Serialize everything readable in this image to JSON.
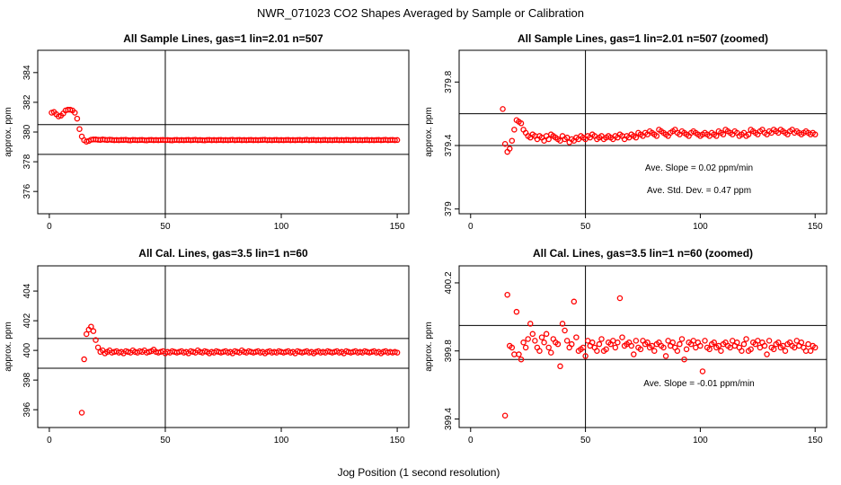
{
  "figure": {
    "title": "NWR_071023  CO2 Shapes Averaged by Sample or Calibration",
    "xlabel": "Jog Position (1 second resolution)"
  },
  "colors": {
    "points": "#ff0000",
    "axes": "#000000",
    "background": "#ffffff"
  },
  "chart_data": [
    {
      "type": "scatter",
      "title": "All Sample Lines, gas=1 lin=2.01 n=507",
      "xlabel": "",
      "ylabel": "approx. ppm",
      "xlim": [
        -5,
        155
      ],
      "ylim": [
        374.5,
        385.5
      ],
      "xticks": [
        0,
        50,
        100,
        150
      ],
      "yticks": [
        376,
        378,
        380,
        382,
        384
      ],
      "vline": 50,
      "hlines": [
        378.5,
        380.5
      ],
      "annotations": [],
      "x": [
        1,
        2,
        3,
        4,
        5,
        6,
        7,
        8,
        9,
        10,
        11,
        12,
        13,
        14,
        15,
        16,
        17,
        18,
        19,
        20,
        21,
        22,
        23,
        24,
        25,
        26,
        27,
        28,
        29,
        30,
        31,
        32,
        33,
        34,
        35,
        36,
        37,
        38,
        39,
        40,
        41,
        42,
        43,
        44,
        45,
        46,
        47,
        48,
        49,
        50,
        51,
        52,
        53,
        54,
        55,
        56,
        57,
        58,
        59,
        60,
        61,
        62,
        63,
        64,
        65,
        66,
        67,
        68,
        69,
        70,
        71,
        72,
        73,
        74,
        75,
        76,
        77,
        78,
        79,
        80,
        81,
        82,
        83,
        84,
        85,
        86,
        87,
        88,
        89,
        90,
        91,
        92,
        93,
        94,
        95,
        96,
        97,
        98,
        99,
        100,
        101,
        102,
        103,
        104,
        105,
        106,
        107,
        108,
        109,
        110,
        111,
        112,
        113,
        114,
        115,
        116,
        117,
        118,
        119,
        120,
        121,
        122,
        123,
        124,
        125,
        126,
        127,
        128,
        129,
        130,
        131,
        132,
        133,
        134,
        135,
        136,
        137,
        138,
        139,
        140,
        141,
        142,
        143,
        144,
        145,
        146,
        147,
        148,
        149,
        150
      ],
      "y": [
        381.3,
        381.35,
        381.2,
        381.05,
        381.1,
        381.25,
        381.45,
        381.5,
        381.5,
        381.45,
        381.3,
        380.9,
        380.2,
        379.7,
        379.45,
        379.35,
        379.4,
        379.48,
        379.5,
        379.5,
        379.48,
        379.47,
        379.5,
        379.48,
        379.46,
        379.49,
        379.47,
        379.45,
        379.46,
        379.45,
        379.47,
        379.46,
        379.48,
        379.45,
        379.44,
        379.47,
        379.46,
        379.45,
        379.46,
        379.47,
        379.45,
        379.44,
        379.46,
        379.47,
        379.45,
        379.46,
        379.45,
        379.46,
        379.47,
        379.45,
        379.46,
        379.45,
        379.44,
        379.46,
        379.47,
        379.45,
        379.46,
        379.45,
        379.46,
        379.47,
        379.45,
        379.46,
        379.48,
        379.45,
        379.46,
        379.45,
        379.44,
        379.46,
        379.47,
        379.45,
        379.46,
        379.45,
        379.46,
        379.47,
        379.45,
        379.46,
        379.45,
        379.46,
        379.48,
        379.45,
        379.46,
        379.47,
        379.45,
        379.46,
        379.45,
        379.46,
        379.47,
        379.45,
        379.46,
        379.45,
        379.46,
        379.47,
        379.48,
        379.45,
        379.46,
        379.45,
        379.46,
        379.47,
        379.45,
        379.46,
        379.45,
        379.46,
        379.47,
        379.45,
        379.46,
        379.45,
        379.46,
        379.47,
        379.45,
        379.46,
        379.48,
        379.45,
        379.46,
        379.47,
        379.45,
        379.46,
        379.45,
        379.46,
        379.47,
        379.45,
        379.46,
        379.45,
        379.46,
        379.47,
        379.45,
        379.46,
        379.45,
        379.47,
        379.46,
        379.45,
        379.46,
        379.47,
        379.45,
        379.46,
        379.45,
        379.46,
        379.47,
        379.45,
        379.46,
        379.45,
        379.46,
        379.47,
        379.45,
        379.46,
        379.48,
        379.45,
        379.46,
        379.47,
        379.45,
        379.46
      ]
    },
    {
      "type": "scatter",
      "title": "All Sample Lines, gas=1 lin=2.01 n=507 (zoomed)",
      "xlabel": "",
      "ylabel": "approx. ppm",
      "xlim": [
        -5,
        155
      ],
      "ylim": [
        378.97,
        380.0
      ],
      "xticks": [
        0,
        50,
        100,
        150
      ],
      "yticks": [
        379.0,
        379.4,
        379.8
      ],
      "vline": 50,
      "hlines": [
        379.4,
        379.6
      ],
      "annotations": [
        "Ave. Slope =  0.02  ppm/min",
        "Ave. Std. Dev. =  0.47  ppm"
      ],
      "x": [
        14,
        15,
        16,
        17,
        18,
        19,
        20,
        21,
        22,
        23,
        24,
        25,
        26,
        27,
        28,
        29,
        30,
        31,
        32,
        33,
        34,
        35,
        36,
        37,
        38,
        39,
        40,
        41,
        42,
        43,
        44,
        45,
        46,
        47,
        48,
        49,
        50,
        51,
        52,
        53,
        54,
        55,
        56,
        57,
        58,
        59,
        60,
        61,
        62,
        63,
        64,
        65,
        66,
        67,
        68,
        69,
        70,
        71,
        72,
        73,
        74,
        75,
        76,
        77,
        78,
        79,
        80,
        81,
        82,
        83,
        84,
        85,
        86,
        87,
        88,
        89,
        90,
        91,
        92,
        93,
        94,
        95,
        96,
        97,
        98,
        99,
        100,
        101,
        102,
        103,
        104,
        105,
        106,
        107,
        108,
        109,
        110,
        111,
        112,
        113,
        114,
        115,
        116,
        117,
        118,
        119,
        120,
        121,
        122,
        123,
        124,
        125,
        126,
        127,
        128,
        129,
        130,
        131,
        132,
        133,
        134,
        135,
        136,
        137,
        138,
        139,
        140,
        141,
        142,
        143,
        144,
        145,
        146,
        147,
        148,
        149,
        150
      ],
      "y": [
        379.63,
        379.41,
        379.36,
        379.38,
        379.43,
        379.5,
        379.56,
        379.55,
        379.54,
        379.5,
        379.48,
        379.46,
        379.45,
        379.47,
        379.46,
        379.44,
        379.46,
        379.45,
        379.43,
        379.46,
        379.44,
        379.47,
        379.46,
        379.45,
        379.44,
        379.43,
        379.46,
        379.44,
        379.45,
        379.42,
        379.44,
        379.43,
        379.45,
        379.44,
        379.46,
        379.45,
        379.44,
        379.46,
        379.45,
        379.47,
        379.46,
        379.44,
        379.45,
        379.46,
        379.44,
        379.45,
        379.46,
        379.45,
        379.44,
        379.46,
        379.45,
        379.47,
        379.46,
        379.44,
        379.46,
        379.45,
        379.47,
        379.46,
        379.45,
        379.48,
        379.47,
        379.46,
        379.48,
        379.47,
        379.49,
        379.48,
        379.47,
        379.46,
        379.5,
        379.49,
        379.48,
        379.47,
        379.46,
        379.48,
        379.49,
        379.5,
        379.48,
        379.47,
        379.49,
        379.48,
        379.47,
        379.46,
        379.48,
        379.49,
        379.48,
        379.47,
        379.46,
        379.47,
        379.48,
        379.47,
        379.46,
        379.48,
        379.47,
        379.46,
        379.49,
        379.48,
        379.47,
        379.5,
        379.49,
        379.48,
        379.47,
        379.49,
        379.48,
        379.46,
        379.47,
        379.48,
        379.46,
        379.47,
        379.5,
        379.49,
        379.48,
        379.47,
        379.49,
        379.5,
        379.48,
        379.47,
        379.49,
        379.48,
        379.5,
        379.49,
        379.48,
        379.5,
        379.49,
        379.48,
        379.47,
        379.49,
        379.5,
        379.48,
        379.49,
        379.48,
        379.47,
        379.48,
        379.49,
        379.48,
        379.47,
        379.48,
        379.47
      ]
    },
    {
      "type": "scatter",
      "title": "All Cal. Lines, gas=3.5 lin=1 n=60",
      "xlabel": "",
      "ylabel": "approx. ppm",
      "xlim": [
        -5,
        155
      ],
      "ylim": [
        394.8,
        405.7
      ],
      "xticks": [
        0,
        50,
        100,
        150
      ],
      "yticks": [
        396,
        398,
        400,
        402,
        404
      ],
      "vline": 50,
      "hlines": [
        398.8,
        400.8
      ],
      "annotations": [],
      "x": [
        14,
        15,
        16,
        17,
        18,
        19,
        20,
        21,
        22,
        23,
        24,
        25,
        26,
        27,
        28,
        29,
        30,
        31,
        32,
        33,
        34,
        35,
        36,
        37,
        38,
        39,
        40,
        41,
        42,
        43,
        44,
        45,
        46,
        47,
        48,
        49,
        50,
        51,
        52,
        53,
        54,
        55,
        56,
        57,
        58,
        59,
        60,
        61,
        62,
        63,
        64,
        65,
        66,
        67,
        68,
        69,
        70,
        71,
        72,
        73,
        74,
        75,
        76,
        77,
        78,
        79,
        80,
        81,
        82,
        83,
        84,
        85,
        86,
        87,
        88,
        89,
        90,
        91,
        92,
        93,
        94,
        95,
        96,
        97,
        98,
        99,
        100,
        101,
        102,
        103,
        104,
        105,
        106,
        107,
        108,
        109,
        110,
        111,
        112,
        113,
        114,
        115,
        116,
        117,
        118,
        119,
        120,
        121,
        122,
        123,
        124,
        125,
        126,
        127,
        128,
        129,
        130,
        131,
        132,
        133,
        134,
        135,
        136,
        137,
        138,
        139,
        140,
        141,
        142,
        143,
        144,
        145,
        146,
        147,
        148,
        149,
        150
      ],
      "y": [
        395.8,
        399.4,
        401.1,
        401.4,
        401.6,
        401.3,
        400.7,
        400.2,
        399.9,
        400.0,
        399.8,
        399.9,
        400.0,
        399.85,
        399.9,
        399.95,
        399.85,
        399.9,
        399.8,
        399.95,
        399.9,
        399.85,
        400.0,
        399.9,
        399.85,
        399.95,
        399.9,
        400.0,
        399.85,
        399.9,
        399.95,
        400.05,
        399.9,
        399.85,
        399.9,
        399.95,
        399.8,
        399.9,
        399.85,
        399.95,
        399.9,
        399.85,
        399.9,
        399.95,
        399.85,
        399.9,
        399.8,
        399.95,
        399.9,
        399.85,
        400.0,
        399.9,
        399.85,
        399.95,
        399.9,
        399.8,
        399.9,
        399.85,
        399.95,
        399.9,
        399.85,
        399.9,
        399.95,
        399.85,
        399.9,
        399.8,
        399.95,
        399.9,
        399.85,
        400.0,
        399.9,
        399.85,
        399.95,
        399.9,
        399.85,
        399.9,
        399.95,
        399.85,
        399.9,
        399.8,
        399.9,
        399.95,
        399.85,
        399.9,
        399.85,
        399.95,
        399.9,
        399.85,
        399.9,
        399.95,
        399.85,
        399.9,
        399.8,
        399.95,
        399.9,
        399.85,
        399.9,
        399.95,
        399.85,
        399.9,
        399.8,
        399.9,
        399.95,
        399.85,
        399.9,
        399.85,
        399.95,
        399.9,
        399.85,
        399.9,
        399.95,
        399.85,
        399.9,
        399.8,
        399.95,
        399.9,
        399.85,
        399.9,
        399.95,
        399.85,
        399.9,
        399.85,
        399.95,
        399.9,
        399.85,
        399.9,
        399.95,
        399.85,
        399.9,
        399.8,
        399.9,
        399.95,
        399.85,
        399.9,
        399.85,
        399.9,
        399.85
      ]
    },
    {
      "type": "scatter",
      "title": "All Cal. Lines, gas=3.5 lin=1 n=60 (zoomed)",
      "xlabel": "",
      "ylabel": "approx. ppm",
      "xlim": [
        -5,
        155
      ],
      "ylim": [
        399.35,
        400.3
      ],
      "xticks": [
        0,
        50,
        100,
        150
      ],
      "yticks": [
        399.4,
        399.8,
        400.2
      ],
      "vline": 50,
      "hlines": [
        399.75,
        399.95
      ],
      "annotations": [
        "Ave. Slope =  -0.01  ppm/min"
      ],
      "x": [
        15,
        16,
        17,
        18,
        19,
        20,
        21,
        22,
        23,
        24,
        25,
        26,
        27,
        28,
        29,
        30,
        31,
        32,
        33,
        34,
        35,
        36,
        37,
        38,
        39,
        40,
        41,
        42,
        43,
        44,
        45,
        46,
        47,
        48,
        49,
        50,
        51,
        52,
        53,
        54,
        55,
        56,
        57,
        58,
        59,
        60,
        61,
        62,
        63,
        64,
        65,
        66,
        67,
        68,
        69,
        70,
        71,
        72,
        73,
        74,
        75,
        76,
        77,
        78,
        79,
        80,
        81,
        82,
        83,
        84,
        85,
        86,
        87,
        88,
        89,
        90,
        91,
        92,
        93,
        94,
        95,
        96,
        97,
        98,
        99,
        100,
        101,
        102,
        103,
        104,
        105,
        106,
        107,
        108,
        109,
        110,
        111,
        112,
        113,
        114,
        115,
        116,
        117,
        118,
        119,
        120,
        121,
        122,
        123,
        124,
        125,
        126,
        127,
        128,
        129,
        130,
        131,
        132,
        133,
        134,
        135,
        136,
        137,
        138,
        139,
        140,
        141,
        142,
        143,
        144,
        145,
        146,
        147,
        148,
        149,
        150
      ],
      "y": [
        399.42,
        400.13,
        399.83,
        399.82,
        399.78,
        400.03,
        399.78,
        399.75,
        399.85,
        399.82,
        399.87,
        399.96,
        399.9,
        399.86,
        399.82,
        399.8,
        399.88,
        399.85,
        399.9,
        399.82,
        399.79,
        399.87,
        399.85,
        399.84,
        399.71,
        399.96,
        399.92,
        399.86,
        399.82,
        399.84,
        400.09,
        399.88,
        399.8,
        399.81,
        399.82,
        399.77,
        399.86,
        399.83,
        399.85,
        399.82,
        399.8,
        399.84,
        399.87,
        399.8,
        399.81,
        399.85,
        399.84,
        399.86,
        399.82,
        399.85,
        400.11,
        399.88,
        399.83,
        399.84,
        399.85,
        399.83,
        399.78,
        399.86,
        399.82,
        399.81,
        399.86,
        399.84,
        399.85,
        399.82,
        399.83,
        399.8,
        399.84,
        399.85,
        399.83,
        399.82,
        399.77,
        399.86,
        399.83,
        399.85,
        399.82,
        399.8,
        399.84,
        399.87,
        399.75,
        399.81,
        399.85,
        399.84,
        399.86,
        399.82,
        399.85,
        399.83,
        399.68,
        399.86,
        399.82,
        399.81,
        399.84,
        399.85,
        399.82,
        399.83,
        399.8,
        399.84,
        399.85,
        399.83,
        399.82,
        399.86,
        399.83,
        399.85,
        399.82,
        399.8,
        399.84,
        399.87,
        399.8,
        399.81,
        399.85,
        399.84,
        399.86,
        399.82,
        399.85,
        399.83,
        399.78,
        399.86,
        399.82,
        399.81,
        399.84,
        399.85,
        399.82,
        399.83,
        399.8,
        399.84,
        399.85,
        399.83,
        399.82,
        399.86,
        399.83,
        399.85,
        399.82,
        399.8,
        399.84,
        399.8,
        399.83,
        399.82
      ]
    }
  ]
}
